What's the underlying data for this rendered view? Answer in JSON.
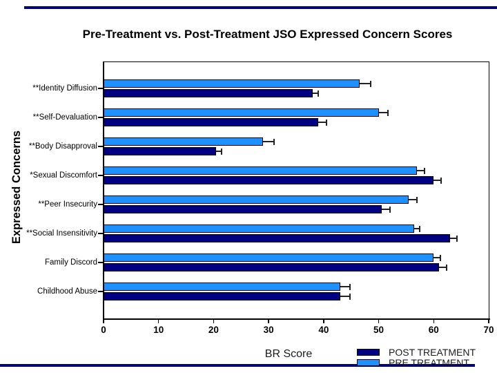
{
  "slide": {
    "accent_color": "#000080",
    "background": "#ffffff"
  },
  "chart_data": {
    "type": "bar",
    "orientation": "horizontal",
    "title": "Pre-Treatment vs. Post-Treatment JSO Expressed Concern Scores",
    "xlabel": "BR Score",
    "ylabel": "Expressed Concerns",
    "xlim": [
      0,
      70
    ],
    "xticks": [
      0,
      10,
      20,
      30,
      40,
      50,
      60,
      70
    ],
    "grid": false,
    "error_bars": true,
    "categories": [
      "**Identity Diffusion",
      "**Self-Devaluation",
      "**Body Disapproval",
      "*Sexual Discomfort",
      "**Peer Insecurity",
      "**Social Insensitivity",
      "Family Discord",
      "Childhood Abuse"
    ],
    "series": [
      {
        "name": "PRE TREATMENT",
        "color": "#1E90FF",
        "values": [
          46.5,
          50,
          29,
          57,
          55.5,
          56.5,
          60,
          43
        ],
        "errors": [
          2,
          1.7,
          2,
          1.3,
          1.5,
          1,
          1.2,
          1.8
        ]
      },
      {
        "name": "POST TREATMENT",
        "color": "#000080",
        "values": [
          38,
          39,
          20.5,
          60,
          50.5,
          63,
          61,
          43
        ],
        "errors": [
          1,
          1.5,
          1,
          1.4,
          1.5,
          1.2,
          1.3,
          1.8
        ]
      }
    ],
    "legend": [
      {
        "label": "POST TREATMENT",
        "color": "#000080"
      },
      {
        "label": "PRE TREATMENT",
        "color": "#1E90FF"
      }
    ],
    "legend_position": "bottom-right"
  }
}
